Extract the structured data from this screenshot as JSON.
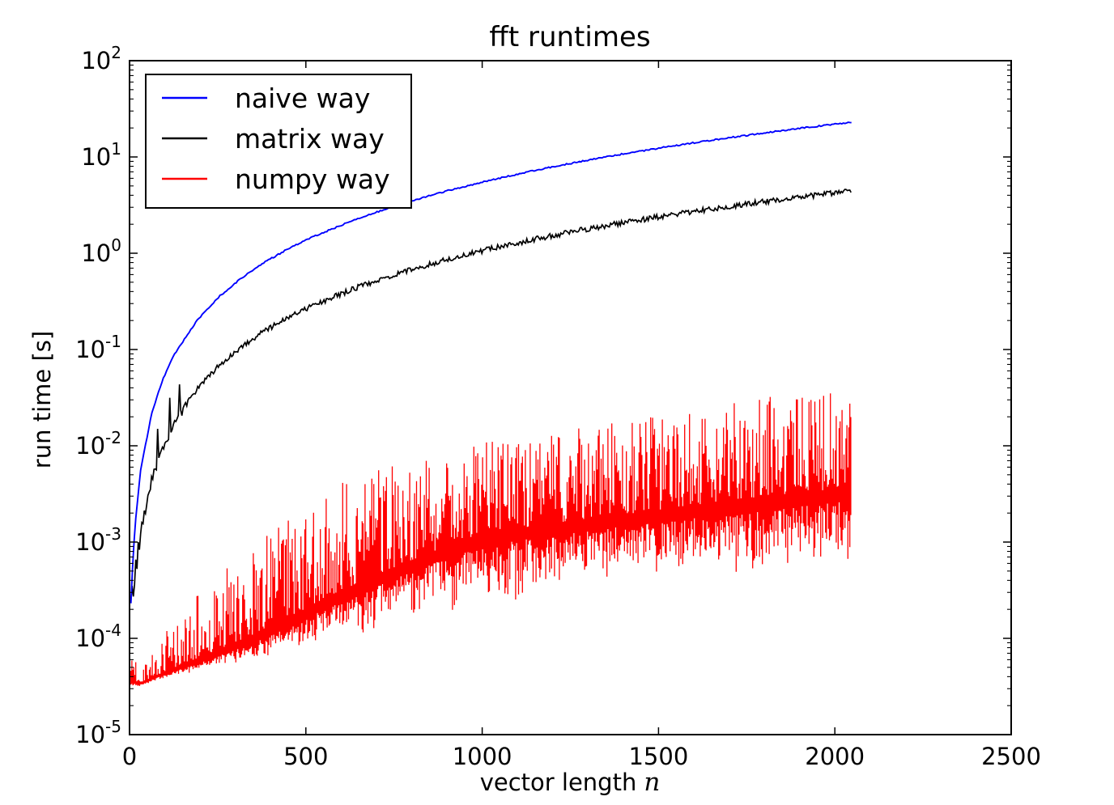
{
  "chart_data": {
    "type": "line",
    "title": "fft runtimes",
    "xlabel_text": "vector length",
    "xlabel_math": "n",
    "ylabel": "run time [s]",
    "x_ticks": [
      0,
      500,
      1000,
      1500,
      2000,
      2500
    ],
    "y_tick_exponents": [
      2,
      1,
      0,
      -1,
      -2,
      -3,
      -4,
      -5
    ],
    "xlim": [
      0,
      2500
    ],
    "ylim_exponents": [
      -5,
      2
    ],
    "yscale": "log",
    "grid": false,
    "legend_position": "upper left",
    "axis_color": "#000000",
    "background_color": "#ffffff",
    "series": [
      {
        "name": "naive way",
        "color": "#0000ff",
        "style": "smooth",
        "n": [
          4,
          8,
          16,
          32,
          64,
          96,
          128,
          192,
          256,
          320,
          384,
          448,
          512,
          640,
          768,
          896,
          1024,
          1152,
          1280,
          1408,
          1536,
          1664,
          1792,
          1920,
          2048
        ],
        "t": [
          0.00023,
          0.00049,
          0.00154,
          0.00576,
          0.0226,
          0.0507,
          0.09,
          0.2022,
          0.3594,
          0.5616,
          0.8087,
          1.1007,
          1.4377,
          2.2462,
          3.2345,
          4.4025,
          5.7503,
          7.2779,
          8.9852,
          10.872,
          12.939,
          15.186,
          17.612,
          20.217,
          23.0
        ]
      },
      {
        "name": "matrix way",
        "color": "#000000",
        "style": "noisy",
        "n": [
          4,
          8,
          16,
          32,
          64,
          96,
          128,
          192,
          256,
          320,
          384,
          448,
          512,
          640,
          768,
          896,
          1024,
          1152,
          1280,
          1408,
          1536,
          1664,
          1792,
          1920,
          2048
        ],
        "t": [
          0.000237,
          0.000288,
          0.000491,
          0.00131,
          0.00456,
          0.00999,
          0.0176,
          0.0393,
          0.0697,
          0.1088,
          0.1565,
          0.213,
          0.2781,
          0.4344,
          0.6254,
          0.8512,
          1.1117,
          1.407,
          1.737,
          2.102,
          2.501,
          2.936,
          3.404,
          3.908,
          4.45
        ]
      },
      {
        "name": "numpy way",
        "color": "#ff0000",
        "style": "band",
        "n": [
          4,
          12,
          25,
          45,
          70,
          100,
          150,
          220,
          330,
          450,
          560,
          680,
          800,
          920,
          1040,
          1160,
          1280,
          1400,
          1520,
          1640,
          1760,
          1880,
          2000,
          2048
        ],
        "log10_min": [
          -4.52,
          -4.5,
          -4.5,
          -4.48,
          -4.45,
          -4.42,
          -4.38,
          -4.33,
          -4.26,
          -4.18,
          -4.06,
          -3.96,
          -3.86,
          -3.76,
          -3.66,
          -3.6,
          -3.56,
          -3.5,
          -3.46,
          -3.42,
          -3.4,
          -3.36,
          -3.32,
          -3.3
        ],
        "log10_max": [
          -3.9,
          -4.05,
          -4.35,
          -4.2,
          -4.05,
          -3.95,
          -3.7,
          -3.45,
          -3.08,
          -2.7,
          -2.45,
          -2.25,
          -2.1,
          -2.0,
          -1.95,
          -1.9,
          -1.8,
          -1.75,
          -1.68,
          -1.6,
          -1.52,
          -1.46,
          -1.4,
          -1.38
        ]
      }
    ]
  }
}
